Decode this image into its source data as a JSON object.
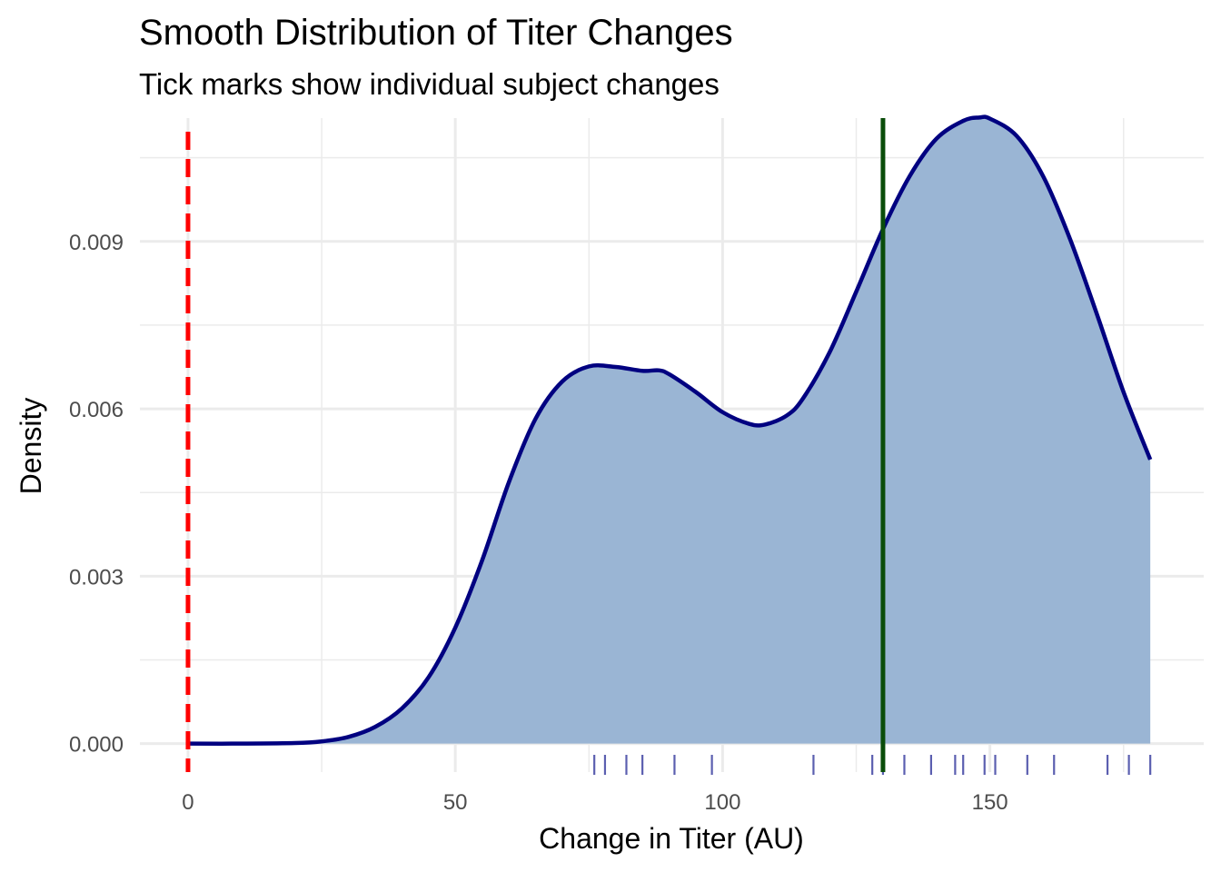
{
  "chart_data": {
    "type": "area",
    "title": "Smooth Distribution of Titer Changes",
    "subtitle": "Tick marks show individual subject changes",
    "xlabel": "Change in Titer (AU)",
    "ylabel": "Density",
    "xlim": [
      -9,
      190
    ],
    "ylim": [
      -0.00051,
      0.01121
    ],
    "x_ticks": [
      0,
      50,
      100,
      150
    ],
    "x_minor": [
      25,
      75,
      125,
      175
    ],
    "y_ticks": [
      0,
      0.003,
      0.006,
      0.009
    ],
    "y_tick_labels": [
      "0.000",
      "0.003",
      "0.006",
      "0.009"
    ],
    "y_minor": [
      0.0015,
      0.0045,
      0.0075,
      0.0105
    ],
    "grid": true,
    "colors": {
      "fill": "#9ab5d4",
      "line": "#000080",
      "rug": "#5b5fb0",
      "reference_line": "#ff0000",
      "mean_line": "#0a4d0a",
      "grid": "#ebebeb"
    },
    "density": {
      "x": [
        0,
        10,
        20,
        25,
        30,
        35,
        40,
        45,
        50,
        55,
        60,
        65,
        70,
        75,
        80,
        85,
        88,
        90,
        95,
        100,
        105,
        108,
        112,
        115,
        120,
        125,
        130,
        135,
        140,
        145,
        148,
        150,
        155,
        160,
        165,
        170,
        175,
        180
      ],
      "y": [
        0,
        5e-07,
        1e-05,
        4e-05,
        0.00012,
        0.0003,
        0.00063,
        0.00119,
        0.00208,
        0.00328,
        0.00468,
        0.00582,
        0.00649,
        0.00676,
        0.00675,
        0.00668,
        0.00669,
        0.00662,
        0.0063,
        0.00594,
        0.00573,
        0.00572,
        0.00588,
        0.00618,
        0.00701,
        0.0081,
        0.00922,
        0.01017,
        0.01084,
        0.01116,
        0.01122,
        0.0112,
        0.01089,
        0.01016,
        0.00904,
        0.0077,
        0.0063,
        0.00509
      ]
    },
    "rug_values": [
      76,
      78,
      82,
      85,
      91,
      98,
      117,
      128,
      130,
      134,
      139,
      143.5,
      145,
      149,
      151,
      157,
      162,
      172,
      176,
      180
    ],
    "reference_line_x": 0,
    "mean_line_x": 130
  }
}
